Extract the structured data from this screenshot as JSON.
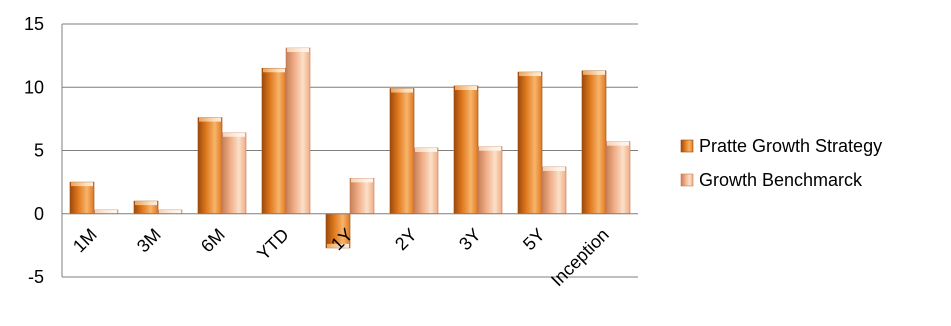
{
  "chart_data": {
    "type": "bar",
    "categories": [
      "1M",
      "3M",
      "6M",
      "YTD",
      "1Y",
      "2Y",
      "3Y",
      "5Y",
      "Inception"
    ],
    "series": [
      {
        "name": "Pratte Growth Strategy",
        "values": [
          2.5,
          1.0,
          7.6,
          11.5,
          -2.7,
          9.9,
          10.1,
          11.2,
          11.3
        ]
      },
      {
        "name": "Growth Benchmarck",
        "values": [
          0.3,
          0.3,
          6.4,
          13.1,
          2.8,
          5.2,
          5.3,
          3.7,
          5.7
        ]
      }
    ],
    "ylim": [
      -5,
      15
    ],
    "yticks": [
      -5,
      0,
      5,
      10,
      15
    ],
    "grid": true,
    "legend_position": "right",
    "colors": {
      "series_0": "#E07A1F",
      "series_0_light": "#F7B46A",
      "series_0_dark": "#9C4A0C",
      "series_1": "#EFAE86",
      "series_1_light": "#FBE0C8",
      "series_1_dark": "#C57E58",
      "gridline": "#7f7f7f"
    }
  }
}
